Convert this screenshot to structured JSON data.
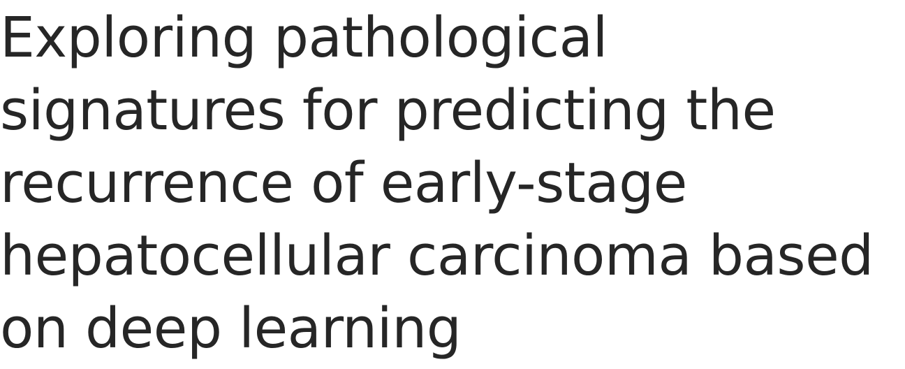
{
  "article": {
    "title_lines": [
      "Exploring pathological",
      "signatures for predicting the",
      "recurrence of early-stage",
      "hepatocellular carcinoma based",
      "on deep learning"
    ],
    "text_color": "#262626",
    "background_color": "#ffffff"
  }
}
